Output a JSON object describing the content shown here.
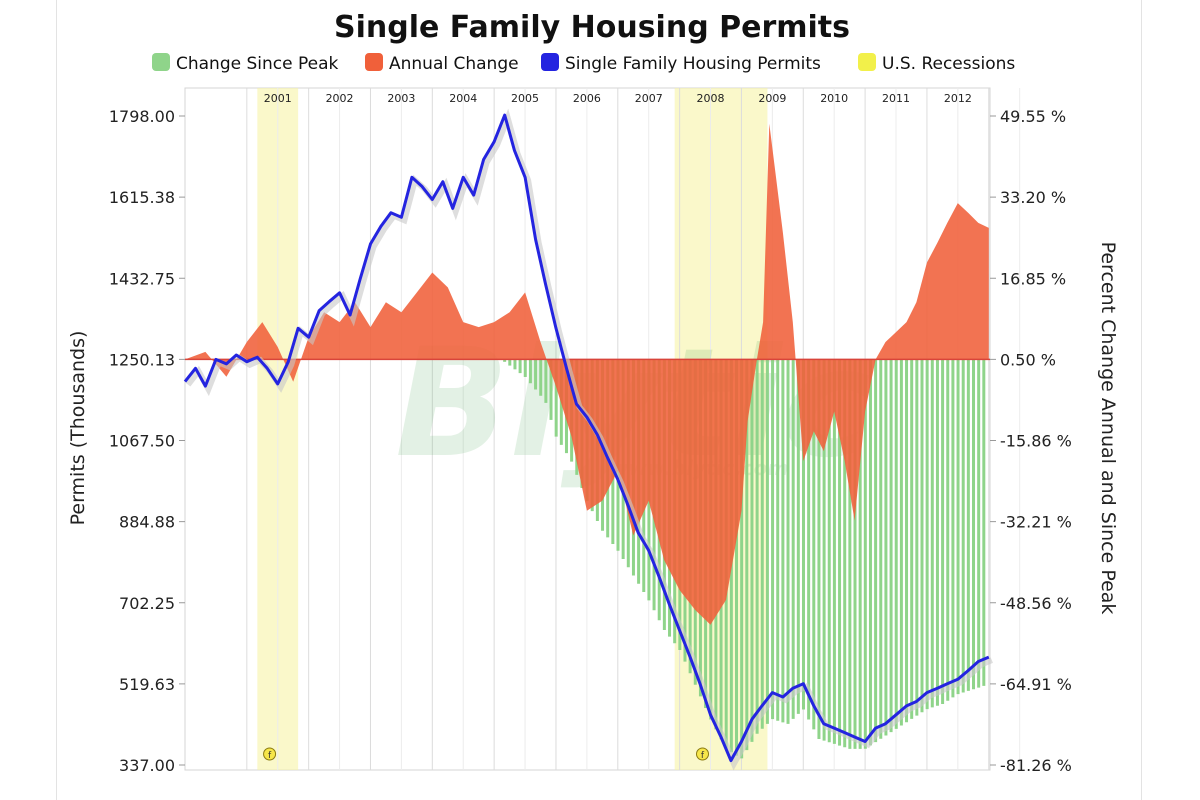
{
  "chart_data": {
    "type": "line",
    "title": "Single Family Housing Permits",
    "legend": [
      {
        "label": "Change Since Peak",
        "color": "#8fd48a"
      },
      {
        "label": "Annual Change",
        "color": "#f0603a"
      },
      {
        "label": "Single Family Housing Permits",
        "color": "#2424e0"
      },
      {
        "label": "U.S. Recessions",
        "color": "#f2f04a"
      }
    ],
    "legend_position": "top",
    "ylabel_left": "Permits (Thousands)",
    "ylabel_right": "Percent Change Annual and Since Peak",
    "y_left_ticks": [
      "337.00",
      "519.63",
      "702.25",
      "884.88",
      "1067.50",
      "1250.13",
      "1432.75",
      "1615.38",
      "1798.00"
    ],
    "y_right_ticks": [
      "-81.26 %",
      "-64.91 %",
      "-48.56 %",
      "-32.21 %",
      "-15.86 %",
      "0.50 %",
      "16.85 %",
      "33.20 %",
      "49.55 %"
    ],
    "ylim_left": [
      337.0,
      1798.0
    ],
    "ylim_right": [
      -81.26,
      49.55
    ],
    "xlim": [
      2000.0,
      2013.02
    ],
    "years": [
      "2001",
      "2002",
      "2003",
      "2004",
      "2005",
      "2006",
      "2007",
      "2008",
      "2009",
      "2010",
      "2011",
      "2012"
    ],
    "grid": true,
    "recessions": [
      {
        "start": 2001.17,
        "end": 2001.83
      },
      {
        "start": 2007.92,
        "end": 2009.42
      }
    ],
    "recession_marker": "f",
    "watermark": "Blytic",
    "watermark_sub": "www.blytic.com",
    "series": [
      {
        "name": "Single Family Housing Permits",
        "kind": "line",
        "x": [
          2000.0,
          2000.17,
          2000.33,
          2000.5,
          2000.67,
          2000.83,
          2001.0,
          2001.17,
          2001.33,
          2001.5,
          2001.67,
          2001.83,
          2002.0,
          2002.17,
          2002.33,
          2002.5,
          2002.67,
          2002.83,
          2003.0,
          2003.17,
          2003.33,
          2003.5,
          2003.67,
          2003.83,
          2004.0,
          2004.17,
          2004.33,
          2004.5,
          2004.67,
          2004.83,
          2005.0,
          2005.17,
          2005.33,
          2005.5,
          2005.67,
          2005.83,
          2006.0,
          2006.17,
          2006.33,
          2006.5,
          2006.67,
          2006.83,
          2007.0,
          2007.17,
          2007.33,
          2007.5,
          2007.67,
          2007.83,
          2008.0,
          2008.17,
          2008.33,
          2008.5,
          2008.67,
          2008.83,
          2009.0,
          2009.17,
          2009.33,
          2009.5,
          2009.67,
          2009.83,
          2010.0,
          2010.17,
          2010.33,
          2010.5,
          2010.67,
          2010.83,
          2011.0,
          2011.17,
          2011.33,
          2011.5,
          2011.67,
          2011.83,
          2012.0,
          2012.17,
          2012.33,
          2012.5,
          2012.67,
          2012.83,
          2013.0
        ],
        "values": [
          1200,
          1230,
          1190,
          1250,
          1240,
          1260,
          1245,
          1255,
          1230,
          1195,
          1245,
          1320,
          1300,
          1360,
          1380,
          1400,
          1350,
          1430,
          1510,
          1550,
          1580,
          1570,
          1660,
          1640,
          1610,
          1650,
          1590,
          1660,
          1620,
          1700,
          1740,
          1800,
          1720,
          1660,
          1520,
          1420,
          1320,
          1230,
          1150,
          1120,
          1080,
          1030,
          980,
          920,
          860,
          820,
          760,
          700,
          640,
          580,
          520,
          450,
          400,
          347,
          390,
          440,
          470,
          500,
          490,
          510,
          520,
          470,
          430,
          420,
          410,
          400,
          390,
          420,
          430,
          450,
          470,
          480,
          500,
          510,
          520,
          530,
          550,
          570,
          580
        ]
      },
      {
        "name": "Annual Change",
        "kind": "area",
        "x": [
          2000.0,
          2000.33,
          2000.67,
          2001.0,
          2001.25,
          2001.5,
          2001.75,
          2002.0,
          2002.25,
          2002.5,
          2002.75,
          2003.0,
          2003.25,
          2003.5,
          2003.75,
          2004.0,
          2004.25,
          2004.5,
          2004.75,
          2005.0,
          2005.25,
          2005.5,
          2005.75,
          2006.0,
          2006.25,
          2006.5,
          2006.75,
          2007.0,
          2007.25,
          2007.5,
          2007.75,
          2008.0,
          2008.25,
          2008.5,
          2008.75,
          2009.0,
          2009.1,
          2009.25,
          2009.35,
          2009.45,
          2009.55,
          2009.67,
          2009.83,
          2010.0,
          2010.17,
          2010.33,
          2010.5,
          2010.67,
          2010.83,
          2011.0,
          2011.17,
          2011.33,
          2011.5,
          2011.67,
          2011.83,
          2012.0,
          2012.17,
          2012.33,
          2012.5,
          2012.67,
          2012.83,
          2013.0
        ],
        "values": [
          0.5,
          2.0,
          -3.0,
          4.0,
          8.0,
          3.0,
          -4.0,
          5.0,
          10.0,
          8.0,
          12.0,
          7.0,
          12.0,
          10.0,
          14.0,
          18.0,
          15.0,
          8.0,
          7.0,
          8.0,
          10.0,
          14.0,
          4.0,
          -5.0,
          -15.0,
          -30.0,
          -28.0,
          -22.0,
          -35.0,
          -28.0,
          -40.0,
          -46.0,
          -50.0,
          -53.0,
          -48.0,
          -30.0,
          -12.0,
          0.5,
          8.0,
          48.0,
          38.0,
          26.0,
          8.0,
          -20.0,
          -14.0,
          -18.0,
          -10.0,
          -20.0,
          -32.0,
          -10.0,
          0.5,
          4.0,
          6.0,
          8.0,
          12.0,
          20.0,
          24.0,
          28.0,
          32.0,
          30.0,
          28.0,
          27.0
        ]
      },
      {
        "name": "Change Since Peak",
        "kind": "bars",
        "x": [
          2005.17,
          2005.5,
          2005.83,
          2006.0,
          2006.25,
          2006.5,
          2006.75,
          2007.0,
          2007.25,
          2007.5,
          2007.75,
          2008.0,
          2008.25,
          2008.5,
          2008.75,
          2009.0,
          2009.25,
          2009.5,
          2009.75,
          2010.0,
          2010.25,
          2010.5,
          2010.75,
          2011.0,
          2011.25,
          2011.5,
          2011.75,
          2012.0,
          2012.25,
          2012.5,
          2012.75,
          2013.0
        ],
        "values": [
          0.0,
          -3.0,
          -8.0,
          -15.0,
          -20.0,
          -28.0,
          -34.0,
          -38.0,
          -43.0,
          -48.0,
          -54.0,
          -58.0,
          -65.0,
          -72.0,
          -78.0,
          -80.0,
          -75.0,
          -72.0,
          -73.0,
          -70.0,
          -76.0,
          -77.0,
          -78.0,
          -78.0,
          -76.0,
          -74.0,
          -72.0,
          -70.0,
          -69.0,
          -67.0,
          -66.0,
          -65.0
        ]
      }
    ]
  }
}
